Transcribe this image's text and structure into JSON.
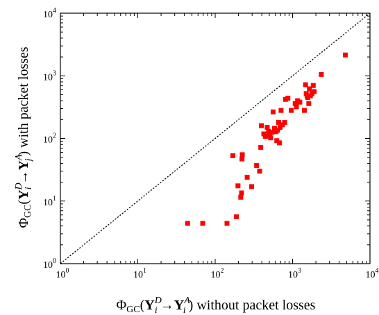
{
  "chart_data": {
    "type": "scatter",
    "title": "",
    "xlabel": {
      "phi": "Φ",
      "phi_sub": "GC",
      "open": "(",
      "y1": "Y",
      "y1_sub": "i",
      "y1_sup": "D",
      "arrow": "→",
      "y2": "Y",
      "y2_sub": "i",
      "y2_sup": "A",
      "close": ")",
      "rest": " without packet losses"
    },
    "ylabel": {
      "phi": "Φ",
      "phi_sub": "GC",
      "open": "(",
      "y1": "Y",
      "y1_sub": "i",
      "y1_sup": "D",
      "arrow": "→",
      "y2": "Y",
      "y2_sub": "j",
      "y2_sup": "A",
      "close": ")",
      "rest": " with packet losses"
    },
    "xscale": "log",
    "yscale": "log",
    "xlim": [
      1,
      10000
    ],
    "ylim": [
      1,
      10000
    ],
    "grid": false,
    "reference_line": "y = x",
    "marker_color": "#ff0000",
    "x_ticks": [
      {
        "value": 1,
        "base": "10",
        "exp": "0"
      },
      {
        "value": 10,
        "base": "10",
        "exp": "1"
      },
      {
        "value": 100,
        "base": "10",
        "exp": "2"
      },
      {
        "value": 1000,
        "base": "10",
        "exp": "3"
      },
      {
        "value": 10000,
        "base": "10",
        "exp": "4"
      }
    ],
    "y_ticks": [
      {
        "value": 1,
        "base": "10",
        "exp": "0"
      },
      {
        "value": 10,
        "base": "10",
        "exp": "1"
      },
      {
        "value": 100,
        "base": "10",
        "exp": "2"
      },
      {
        "value": 1000,
        "base": "10",
        "exp": "3"
      },
      {
        "value": 10000,
        "base": "10",
        "exp": "4"
      }
    ],
    "points": [
      {
        "x": 44,
        "y": 4.4
      },
      {
        "x": 69,
        "y": 4.4
      },
      {
        "x": 142,
        "y": 4.4
      },
      {
        "x": 188,
        "y": 5.6
      },
      {
        "x": 197,
        "y": 17.5
      },
      {
        "x": 214,
        "y": 11.5
      },
      {
        "x": 219,
        "y": 13.5
      },
      {
        "x": 169,
        "y": 53
      },
      {
        "x": 222,
        "y": 47
      },
      {
        "x": 224,
        "y": 55
      },
      {
        "x": 259,
        "y": 24
      },
      {
        "x": 296,
        "y": 17
      },
      {
        "x": 343,
        "y": 37
      },
      {
        "x": 375,
        "y": 30
      },
      {
        "x": 388,
        "y": 72
      },
      {
        "x": 395,
        "y": 160
      },
      {
        "x": 425,
        "y": 118
      },
      {
        "x": 445,
        "y": 108
      },
      {
        "x": 470,
        "y": 150
      },
      {
        "x": 490,
        "y": 130
      },
      {
        "x": 505,
        "y": 110
      },
      {
        "x": 520,
        "y": 102
      },
      {
        "x": 540,
        "y": 125
      },
      {
        "x": 560,
        "y": 265
      },
      {
        "x": 585,
        "y": 145
      },
      {
        "x": 610,
        "y": 128
      },
      {
        "x": 625,
        "y": 92
      },
      {
        "x": 640,
        "y": 135
      },
      {
        "x": 660,
        "y": 180
      },
      {
        "x": 675,
        "y": 85
      },
      {
        "x": 690,
        "y": 150
      },
      {
        "x": 710,
        "y": 280
      },
      {
        "x": 740,
        "y": 165
      },
      {
        "x": 790,
        "y": 180
      },
      {
        "x": 810,
        "y": 420
      },
      {
        "x": 870,
        "y": 440
      },
      {
        "x": 960,
        "y": 280
      },
      {
        "x": 1080,
        "y": 360
      },
      {
        "x": 1120,
        "y": 320
      },
      {
        "x": 1160,
        "y": 400
      },
      {
        "x": 1240,
        "y": 380
      },
      {
        "x": 1420,
        "y": 280
      },
      {
        "x": 1470,
        "y": 720
      },
      {
        "x": 1500,
        "y": 520
      },
      {
        "x": 1540,
        "y": 480
      },
      {
        "x": 1570,
        "y": 450
      },
      {
        "x": 1620,
        "y": 360
      },
      {
        "x": 1650,
        "y": 620
      },
      {
        "x": 1700,
        "y": 480
      },
      {
        "x": 1780,
        "y": 520
      },
      {
        "x": 1850,
        "y": 700
      },
      {
        "x": 1900,
        "y": 560
      },
      {
        "x": 2350,
        "y": 1050
      },
      {
        "x": 4800,
        "y": 2150
      }
    ]
  }
}
